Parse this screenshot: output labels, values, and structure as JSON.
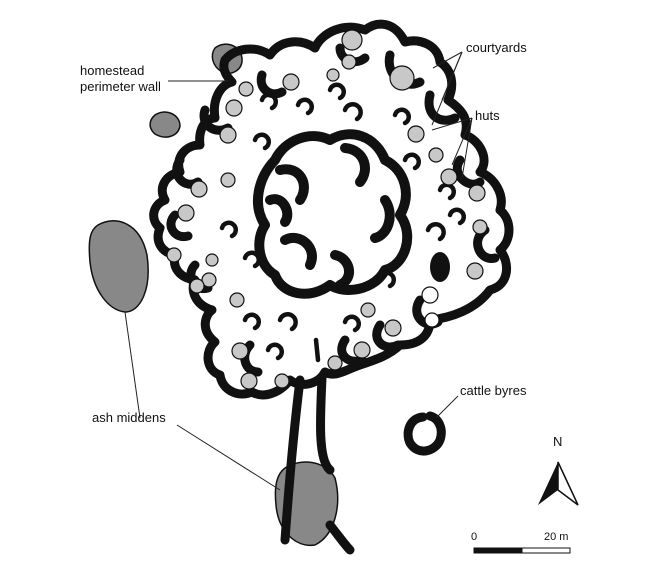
{
  "labels": {
    "courtyards": "courtyards",
    "wall_line1": "homestead",
    "wall_line2": "perimeter wall",
    "huts": "huts",
    "cattle_byres": "cattle byres",
    "ash_middens": "ash middens"
  },
  "north_arrow": {
    "label": "N",
    "icon": "north-arrow-icon"
  },
  "scale_bar": {
    "start_label": "0",
    "end_label": "20 m"
  },
  "colors": {
    "wall": "#111111",
    "courtyard": "#c8c8c8",
    "midden": "#888888",
    "background": "#ffffff"
  }
}
